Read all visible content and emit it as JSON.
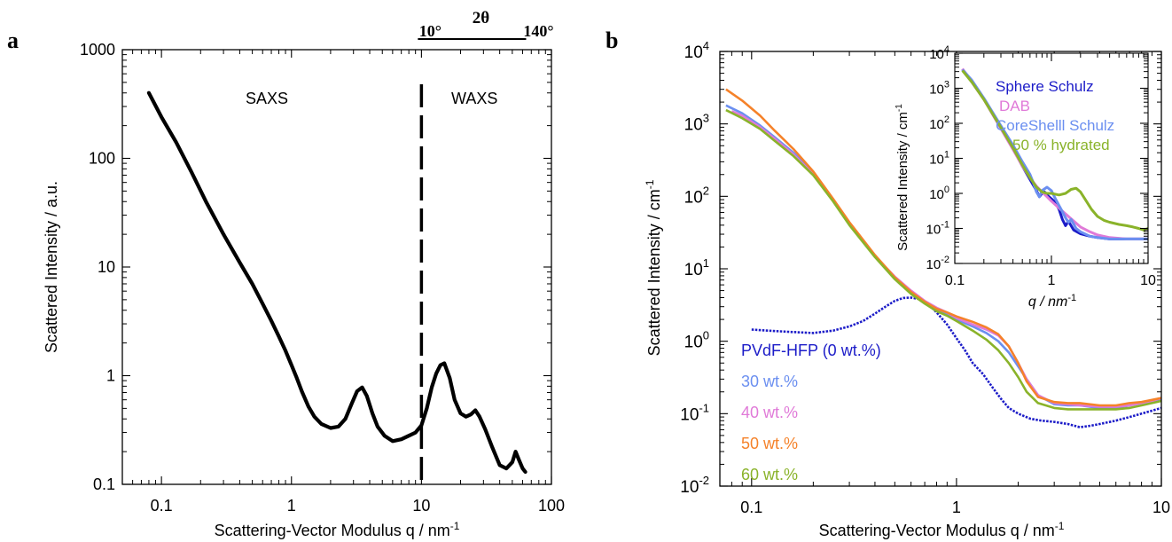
{
  "chart_data": [
    {
      "panel_label": "a",
      "type": "line",
      "xlabel": "Scattering-Vector Modulus q / nm",
      "xlabel_sup": "-1",
      "ylabel": "Scattered Intensity / a.u.",
      "xscale": "log",
      "yscale": "log",
      "xlim": [
        0.05,
        100
      ],
      "ylim": [
        0.1,
        1000
      ],
      "xtick_labels": [
        "0.1",
        "1",
        "10",
        "100"
      ],
      "xtick_values": [
        0.1,
        1,
        10,
        100
      ],
      "ytick_labels": [
        "0.1",
        "1",
        "10",
        "100",
        "1000"
      ],
      "ytick_values": [
        0.1,
        1,
        10,
        100,
        1000
      ],
      "grid": false,
      "annotations": {
        "left_region": "SAXS",
        "right_region": "WAXS",
        "divider_q": 10,
        "top_axis_label": "2θ",
        "top_axis_start": "10°",
        "top_axis_end": "140°"
      },
      "series": [
        {
          "color": "#000000",
          "x": [
            0.08,
            0.1,
            0.13,
            0.17,
            0.22,
            0.3,
            0.4,
            0.5,
            0.6,
            0.7,
            0.8,
            0.9,
            1.0,
            1.1,
            1.2,
            1.35,
            1.5,
            1.7,
            2.0,
            2.3,
            2.6,
            2.9,
            3.2,
            3.5,
            3.8,
            4.2,
            4.6,
            5.2,
            6.0,
            7.0,
            8.0,
            9.0,
            10.0,
            11.0,
            12.0,
            13.0,
            14.0,
            15.0,
            16.5,
            18.0,
            20.0,
            22.0,
            24.0,
            26.0,
            28.0,
            31.0,
            35.0,
            40.0,
            45.0,
            50.0,
            53.0,
            56.0,
            60.0,
            63.0
          ],
          "y": [
            400,
            240,
            140,
            75,
            40,
            20,
            11,
            7,
            4.6,
            3.2,
            2.3,
            1.7,
            1.25,
            0.95,
            0.72,
            0.52,
            0.42,
            0.36,
            0.33,
            0.34,
            0.4,
            0.55,
            0.72,
            0.78,
            0.65,
            0.45,
            0.34,
            0.28,
            0.25,
            0.26,
            0.28,
            0.3,
            0.35,
            0.5,
            0.78,
            1.05,
            1.25,
            1.3,
            0.95,
            0.6,
            0.45,
            0.42,
            0.44,
            0.48,
            0.42,
            0.32,
            0.22,
            0.15,
            0.14,
            0.16,
            0.2,
            0.17,
            0.14,
            0.13
          ]
        }
      ]
    },
    {
      "panel_label": "b",
      "type": "scatter",
      "xlabel": "Scattering-Vector Modulus q / nm",
      "xlabel_sup": "-1",
      "ylabel": "Scattered Intensity / cm",
      "ylabel_sup": "-1",
      "xscale": "log",
      "yscale": "log",
      "xlim": [
        0.07,
        10
      ],
      "ylim": [
        0.01,
        10000
      ],
      "xtick_labels": [
        "0.1",
        "1",
        "10"
      ],
      "xtick_values": [
        0.1,
        1,
        10
      ],
      "ytick_mantissa": "10",
      "ytick_exponents": [
        "-2",
        "-1",
        "0",
        "1",
        "2",
        "3",
        "4"
      ],
      "ytick_values": [
        0.01,
        0.1,
        1,
        10,
        100,
        1000,
        10000
      ],
      "grid": false,
      "legend_position": "bottom-left",
      "series": [
        {
          "name": "PVdF-HFP (0 wt.%)",
          "color": "#1c1cc8",
          "x": [
            0.1,
            0.12,
            0.15,
            0.2,
            0.25,
            0.3,
            0.35,
            0.4,
            0.45,
            0.5,
            0.55,
            0.6,
            0.65,
            0.7,
            0.75,
            0.8,
            0.9,
            1.0,
            1.1,
            1.2,
            1.35,
            1.5,
            1.65,
            1.8,
            2.0,
            2.3,
            2.6,
            3.0,
            3.5,
            4.0,
            4.5,
            5.0,
            6.0,
            7.0,
            8.0,
            9.0,
            10.0
          ],
          "y": [
            1.45,
            1.4,
            1.35,
            1.3,
            1.4,
            1.6,
            1.9,
            2.4,
            3.0,
            3.6,
            3.95,
            4.0,
            3.85,
            3.5,
            3.0,
            2.5,
            1.7,
            1.1,
            0.75,
            0.5,
            0.35,
            0.23,
            0.16,
            0.12,
            0.1,
            0.085,
            0.08,
            0.077,
            0.072,
            0.065,
            0.068,
            0.072,
            0.08,
            0.09,
            0.1,
            0.11,
            0.12
          ]
        },
        {
          "name": "30 wt.%",
          "color": "#6b8ff0",
          "x": [
            0.075,
            0.09,
            0.11,
            0.13,
            0.16,
            0.2,
            0.25,
            0.3,
            0.4,
            0.5,
            0.6,
            0.7,
            0.8,
            0.9,
            1.0,
            1.2,
            1.4,
            1.6,
            1.8,
            2.0,
            2.2,
            2.5,
            3.0,
            3.5,
            4.0,
            5.0,
            6.0,
            7.0,
            8.0,
            9.0,
            10.0
          ],
          "y": [
            1800,
            1400,
            950,
            650,
            400,
            210,
            90,
            42,
            15,
            7.5,
            4.8,
            3.5,
            2.8,
            2.4,
            2.0,
            1.6,
            1.3,
            1.0,
            0.7,
            0.45,
            0.3,
            0.18,
            0.135,
            0.13,
            0.13,
            0.12,
            0.12,
            0.13,
            0.14,
            0.15,
            0.16
          ]
        },
        {
          "name": "40 wt.%",
          "color": "#e07ad8",
          "x": [
            0.08,
            0.09,
            0.11,
            0.13,
            0.16,
            0.2,
            0.25,
            0.3,
            0.4,
            0.5,
            0.6,
            0.7,
            0.8,
            0.9,
            1.0,
            1.2,
            1.4,
            1.6,
            1.8,
            2.0,
            2.2,
            2.5,
            3.0,
            3.5,
            4.0,
            5.0,
            6.0,
            7.0,
            8.0,
            9.0,
            10.0
          ],
          "y": [
            1500,
            1300,
            900,
            620,
            380,
            200,
            88,
            42,
            15,
            7.8,
            5.0,
            3.6,
            2.9,
            2.5,
            2.1,
            1.7,
            1.45,
            1.2,
            0.85,
            0.5,
            0.3,
            0.18,
            0.14,
            0.135,
            0.13,
            0.125,
            0.125,
            0.13,
            0.14,
            0.15,
            0.165
          ]
        },
        {
          "name": "50 wt.%",
          "color": "#f5822a",
          "x": [
            0.075,
            0.09,
            0.11,
            0.13,
            0.16,
            0.2,
            0.25,
            0.3,
            0.4,
            0.5,
            0.6,
            0.7,
            0.8,
            0.9,
            1.0,
            1.2,
            1.4,
            1.6,
            1.8,
            2.0,
            2.2,
            2.5,
            3.0,
            3.5,
            4.0,
            5.0,
            6.0,
            7.0,
            8.0,
            9.0,
            10.0
          ],
          "y": [
            3000,
            2100,
            1300,
            800,
            450,
            220,
            92,
            44,
            15.5,
            7.6,
            4.8,
            3.5,
            2.8,
            2.5,
            2.2,
            1.85,
            1.55,
            1.25,
            0.85,
            0.5,
            0.28,
            0.17,
            0.145,
            0.14,
            0.14,
            0.13,
            0.13,
            0.14,
            0.145,
            0.155,
            0.165
          ]
        },
        {
          "name": "60 wt.%",
          "color": "#8ab32a",
          "x": [
            0.075,
            0.09,
            0.11,
            0.13,
            0.16,
            0.2,
            0.25,
            0.3,
            0.4,
            0.5,
            0.6,
            0.7,
            0.8,
            0.9,
            1.0,
            1.2,
            1.4,
            1.6,
            1.8,
            2.0,
            2.2,
            2.5,
            3.0,
            3.5,
            4.0,
            5.0,
            6.0,
            7.0,
            8.0,
            9.0,
            10.0
          ],
          "y": [
            1550,
            1200,
            850,
            580,
            360,
            195,
            85,
            40,
            14.5,
            7.2,
            4.5,
            3.3,
            2.6,
            2.25,
            1.9,
            1.4,
            1.05,
            0.75,
            0.5,
            0.32,
            0.2,
            0.14,
            0.12,
            0.115,
            0.115,
            0.115,
            0.115,
            0.12,
            0.13,
            0.14,
            0.15
          ]
        }
      ],
      "inset": {
        "type": "line",
        "xlabel": "q / nm",
        "xlabel_sup": "-1",
        "ylabel": "Scattered Intensity / cm",
        "ylabel_sup": "-1",
        "xscale": "log",
        "yscale": "log",
        "xlim": [
          0.1,
          10
        ],
        "ylim": [
          0.01,
          10000
        ],
        "xtick_labels": [
          "0.1",
          "1",
          "10"
        ],
        "xtick_values": [
          0.1,
          1,
          10
        ],
        "ytick_mantissa": "10",
        "ytick_exponents": [
          "-2",
          "-1",
          "0",
          "1",
          "2",
          "3",
          "4"
        ],
        "ytick_values": [
          0.01,
          0.1,
          1,
          10,
          100,
          1000,
          10000
        ],
        "legend_position": "top-right",
        "series": [
          {
            "name": "Sphere Schulz",
            "color": "#1c1cc8",
            "x": [
              0.12,
              0.15,
              0.2,
              0.3,
              0.4,
              0.5,
              0.6,
              0.7,
              0.75,
              0.8,
              0.85,
              0.9,
              1.0,
              1.1,
              1.2,
              1.3,
              1.4,
              1.5,
              1.7,
              2.0,
              2.5,
              3.0,
              4.0,
              6.0,
              10.0
            ],
            "y": [
              3500,
              1600,
              500,
              80,
              20,
              6,
              2.5,
              1.2,
              0.8,
              1.0,
              1.1,
              0.9,
              0.7,
              0.55,
              0.35,
              0.18,
              0.12,
              0.16,
              0.09,
              0.07,
              0.06,
              0.055,
              0.05,
              0.05,
              0.05
            ]
          },
          {
            "name": "DAB",
            "color": "#e07ad8",
            "x": [
              0.12,
              0.15,
              0.2,
              0.3,
              0.4,
              0.5,
              0.6,
              0.7,
              0.8,
              0.9,
              1.0,
              1.2,
              1.5,
              2.0,
              2.5,
              3.0,
              4.0,
              6.0,
              10.0
            ],
            "y": [
              3600,
              1500,
              480,
              70,
              18,
              6,
              2.8,
              1.6,
              1.1,
              0.8,
              0.6,
              0.38,
              0.22,
              0.11,
              0.08,
              0.065,
              0.055,
              0.05,
              0.05
            ]
          },
          {
            "name": "CoreShelll Schulz",
            "color": "#6b8ff0",
            "x": [
              0.12,
              0.15,
              0.2,
              0.3,
              0.4,
              0.5,
              0.6,
              0.65,
              0.7,
              0.75,
              0.8,
              0.9,
              1.0,
              1.1,
              1.2,
              1.3,
              1.4,
              1.5,
              1.6,
              1.8,
              2.0,
              2.5,
              3.0,
              4.0,
              6.0,
              10.0
            ],
            "y": [
              3400,
              1700,
              520,
              85,
              24,
              8,
              3.5,
              2.0,
              1.1,
              0.8,
              1.2,
              1.5,
              1.2,
              0.7,
              0.45,
              0.3,
              0.2,
              0.15,
              0.18,
              0.1,
              0.08,
              0.06,
              0.055,
              0.05,
              0.05,
              0.05
            ]
          },
          {
            "name": "50 % hydrated",
            "color": "#8ab32a",
            "x": [
              0.12,
              0.15,
              0.2,
              0.3,
              0.4,
              0.5,
              0.6,
              0.7,
              0.8,
              0.9,
              1.0,
              1.2,
              1.4,
              1.6,
              1.8,
              2.0,
              2.3,
              2.6,
              3.0,
              3.5,
              4.0,
              5.0,
              6.0,
              7.0,
              8.0,
              9.0,
              10.0
            ],
            "y": [
              3200,
              1500,
              480,
              75,
              20,
              6.5,
              2.8,
              1.5,
              1.1,
              1.0,
              1.0,
              0.9,
              1.0,
              1.3,
              1.4,
              1.1,
              0.6,
              0.35,
              0.22,
              0.17,
              0.15,
              0.13,
              0.12,
              0.11,
              0.1,
              0.09,
              0.1
            ]
          }
        ]
      }
    }
  ]
}
